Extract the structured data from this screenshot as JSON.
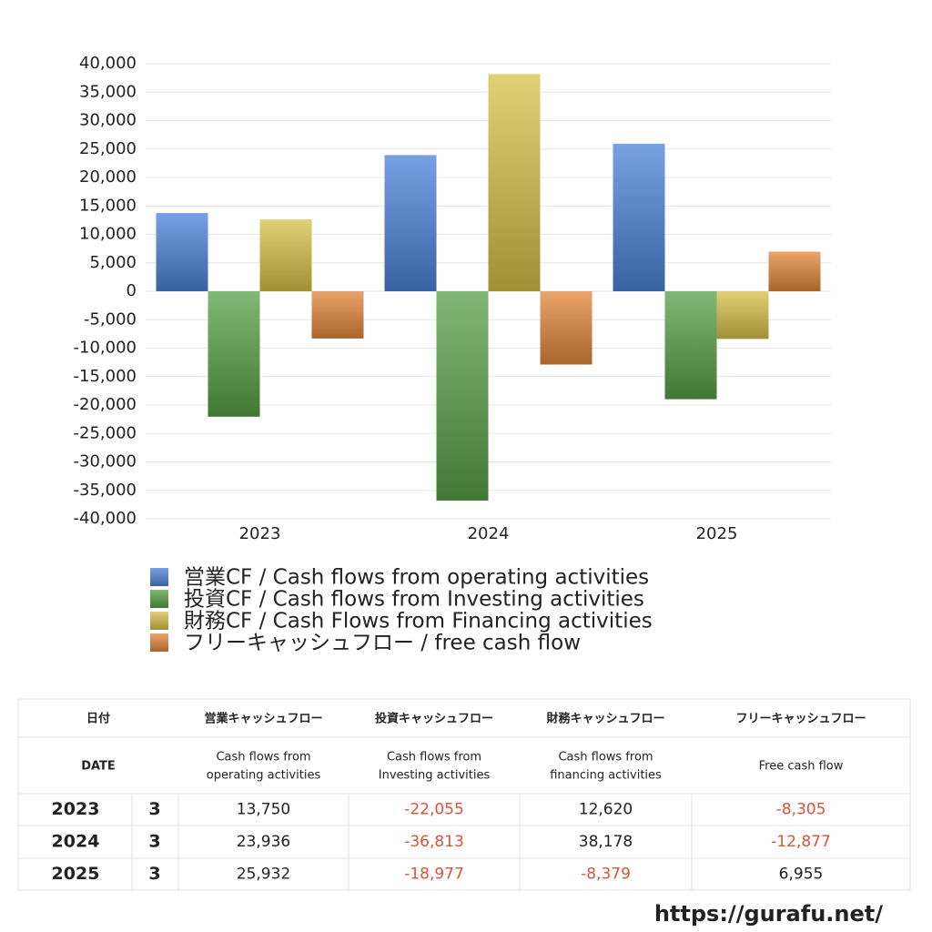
{
  "chart_data": {
    "type": "bar",
    "categories": [
      "2023",
      "2024",
      "2025"
    ],
    "series": [
      {
        "name": "営業CF / Cash flows from operating activities",
        "color": "#4a82d8",
        "values": [
          13750,
          23936,
          25932
        ]
      },
      {
        "name": "投資CF / Cash flows from Investing activities",
        "color": "#55a045",
        "values": [
          -22055,
          -36813,
          -18977
        ]
      },
      {
        "name": "財務CF / Cash Flows from Financing activities",
        "color": "#d8c048",
        "values": [
          12620,
          38178,
          -8379
        ]
      },
      {
        "name": "フリーキャッシュフロー / free cash flow",
        "color": "#e3863a",
        "values": [
          -8305,
          -12877,
          6955
        ]
      }
    ],
    "ylim": [
      -40000,
      40000
    ],
    "yticks": [
      {
        "value": 40000,
        "label": "40,000"
      },
      {
        "value": 35000,
        "label": "35,000"
      },
      {
        "value": 30000,
        "label": "30,000"
      },
      {
        "value": 25000,
        "label": "25,000"
      },
      {
        "value": 20000,
        "label": "20,000"
      },
      {
        "value": 15000,
        "label": "15,000"
      },
      {
        "value": 10000,
        "label": "10,000"
      },
      {
        "value": 5000,
        "label": "5,000"
      },
      0,
      {
        "value": -5000,
        "label": "-5,000"
      },
      {
        "value": -10000,
        "label": "-10,000"
      },
      {
        "value": -15000,
        "label": "-15,000"
      },
      {
        "value": -20000,
        "label": "-20,000"
      },
      {
        "value": -25000,
        "label": "-25,000"
      },
      {
        "value": -30000,
        "label": "-30,000"
      },
      {
        "value": -35000,
        "label": "-35,000"
      },
      {
        "value": -40000,
        "label": "-40,000"
      }
    ],
    "grid": true,
    "legend": "bottom"
  },
  "table": {
    "header": [
      [
        "日付",
        "営業キャッシュフロー",
        "投資キャッシュフロー",
        "財務キャッシュフロー",
        "フリーキャッシュフロー"
      ],
      [
        [
          "DATE"
        ],
        [
          "Cash flows from",
          "operating activities"
        ],
        [
          "Cash flows from",
          "Investing activities"
        ],
        [
          "Cash flows from",
          "financing activities"
        ],
        [
          "Free cash flow"
        ]
      ]
    ],
    "rows": [
      [
        "2023",
        "3",
        "13,750",
        "-22,055",
        "12,620",
        "-8,305"
      ],
      [
        "2024",
        "3",
        "23,936",
        "-36,813",
        "38,178",
        "-12,877"
      ],
      [
        "2025",
        "3",
        "25,932",
        "-18,977",
        "-8,379",
        "6,955"
      ]
    ],
    "negative_color": "#d6553a"
  },
  "footer": "https://gurafu.net/"
}
